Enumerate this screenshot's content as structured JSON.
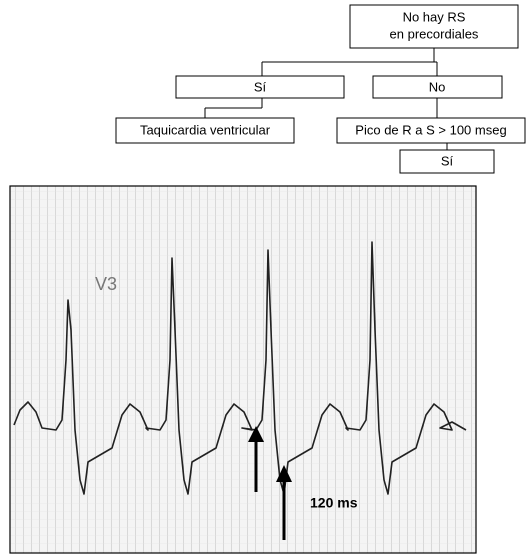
{
  "flowchart": {
    "nodes": [
      {
        "lines": [
          "No hay RS",
          "en precordiales"
        ]
      },
      {
        "label": "Sí"
      },
      {
        "label": "No"
      },
      {
        "label": "Taquicardia ventricular"
      },
      {
        "label": "Pico de R a S > 100 mseg"
      },
      {
        "label": "Sí"
      }
    ]
  },
  "ecg": {
    "lead": "V3",
    "annotation": "120 ms"
  }
}
